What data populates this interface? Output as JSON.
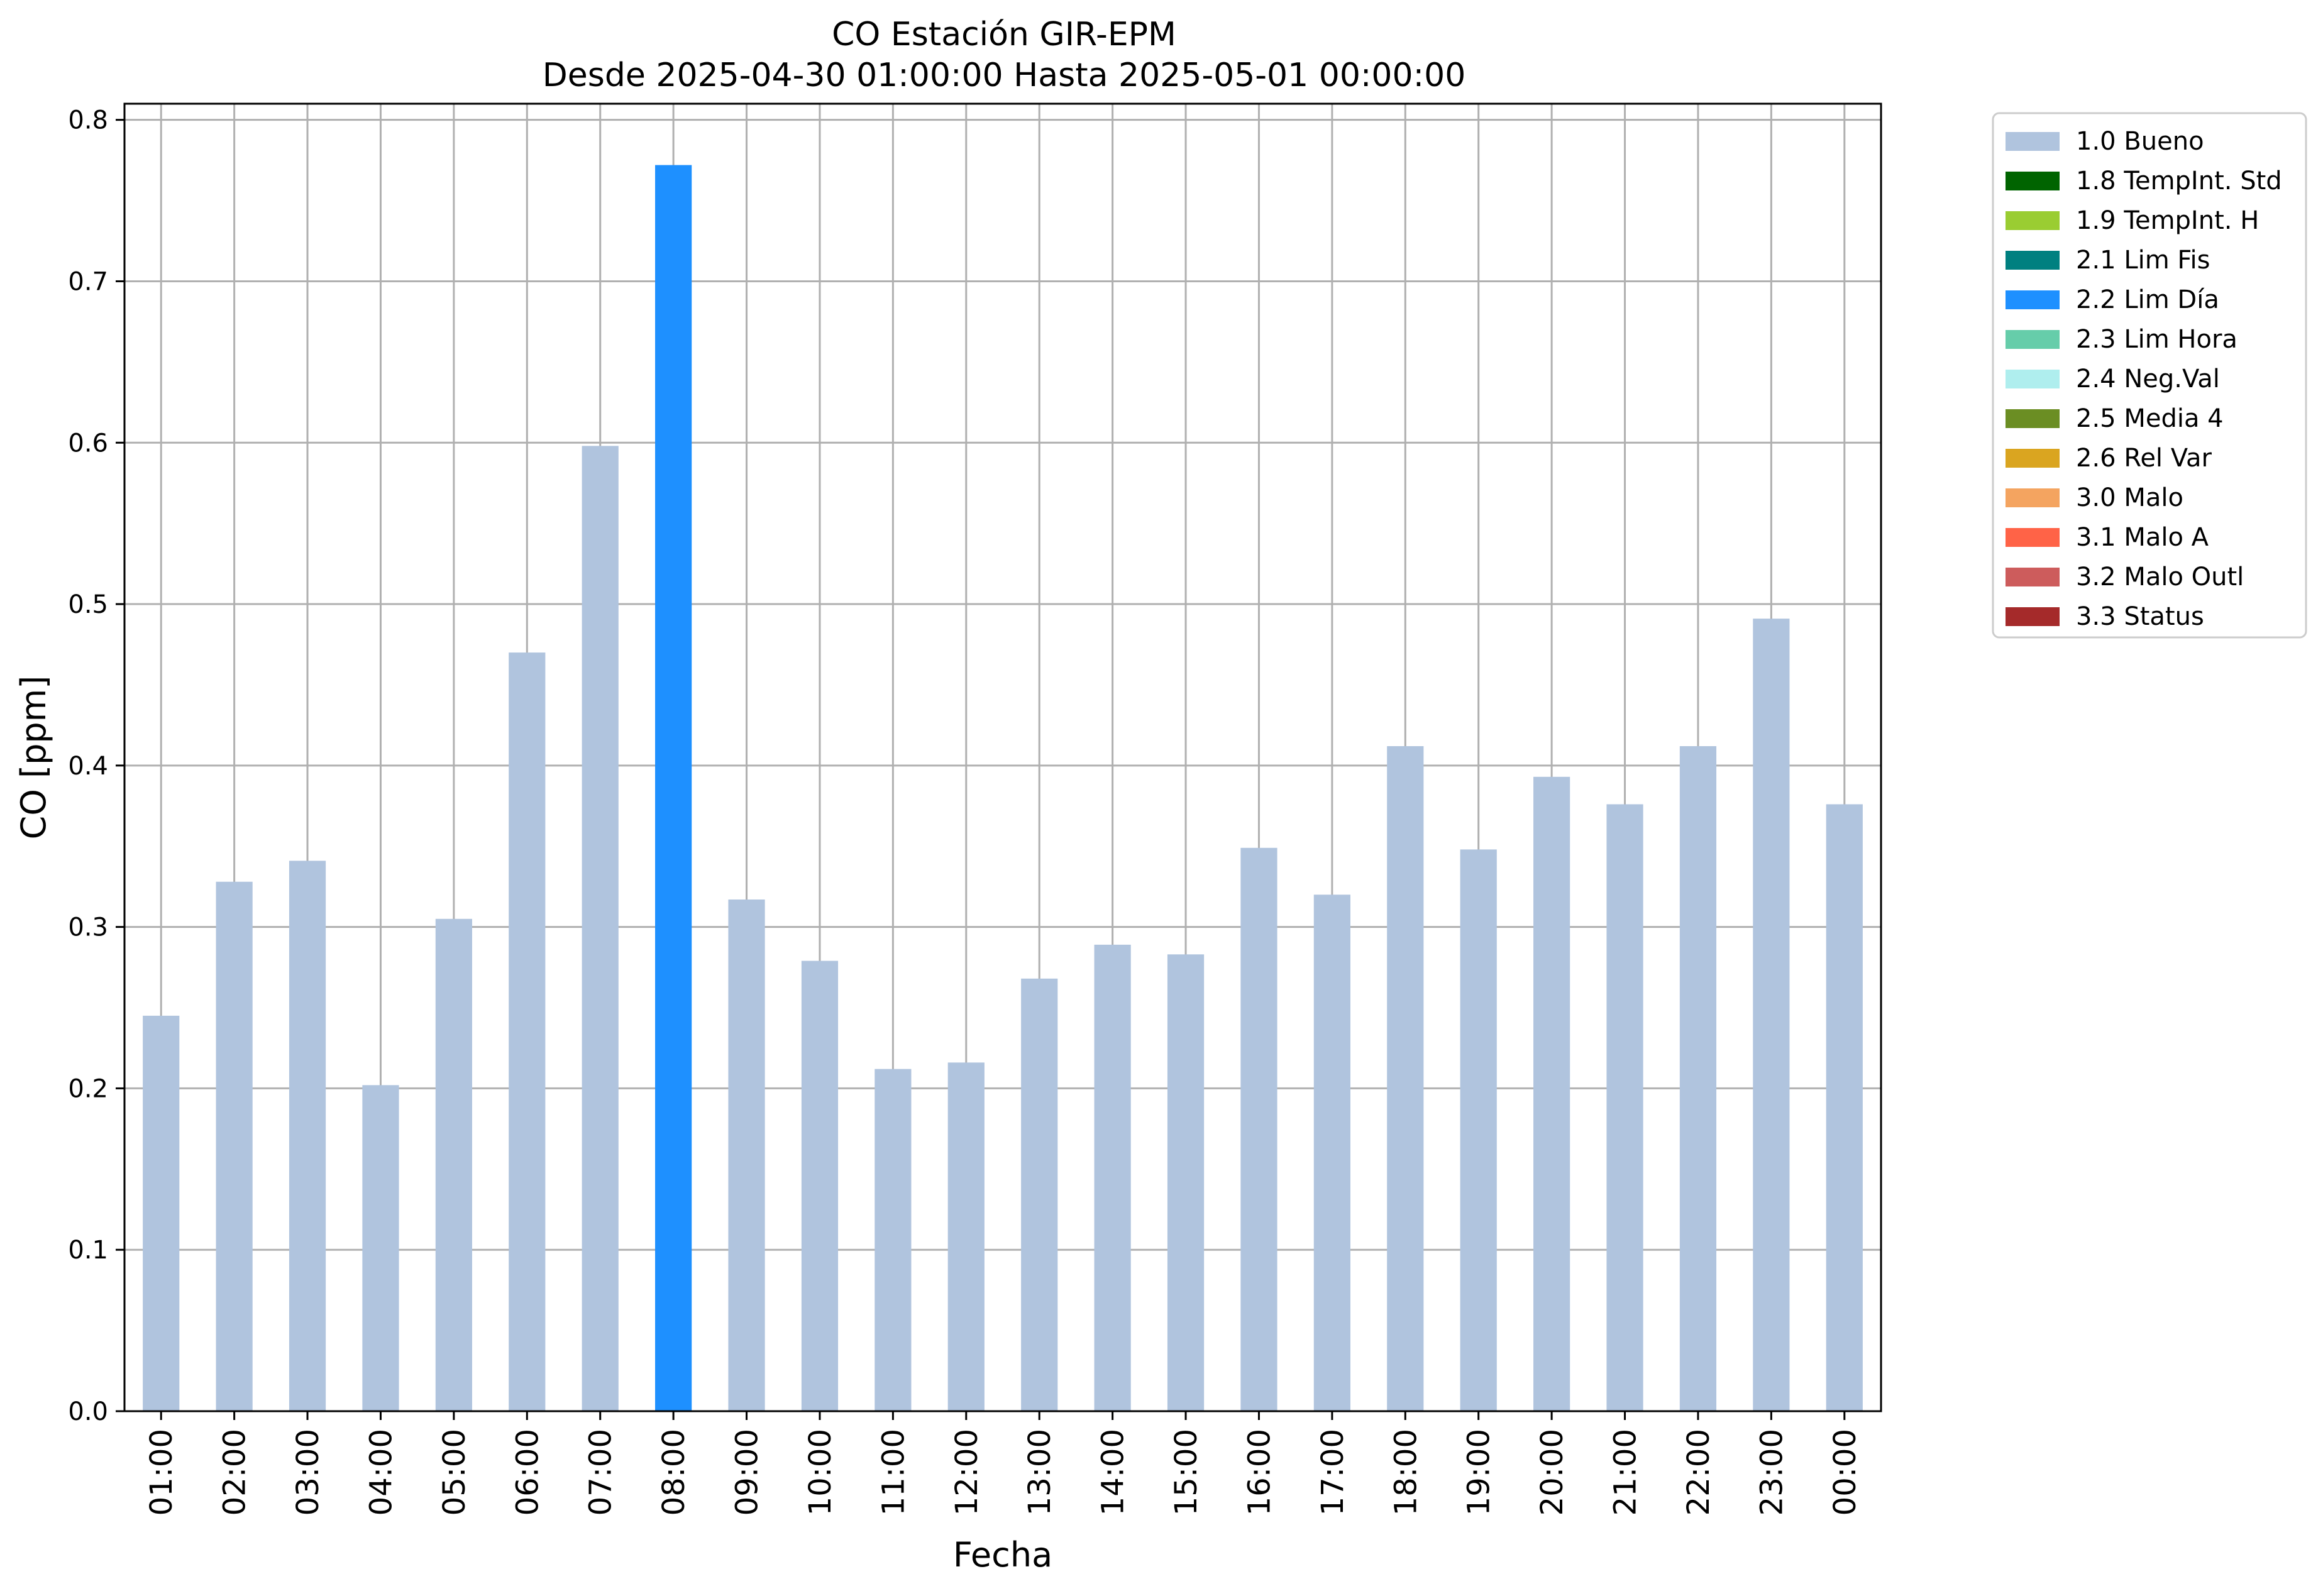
{
  "chart_data": {
    "type": "bar",
    "title": "CO Estación GIR-EPM",
    "subtitle": "Desde 2025-04-30 01:00:00 Hasta 2025-05-01 00:00:00",
    "xlabel": "Fecha",
    "ylabel": "CO [ppm]",
    "ylim": [
      0,
      0.81
    ],
    "yticks": [
      "0.0",
      "0.1",
      "0.2",
      "0.3",
      "0.4",
      "0.5",
      "0.6",
      "0.7",
      "0.8"
    ],
    "grid": true,
    "legend_position": "outside-top-right",
    "categories": [
      "01:00",
      "02:00",
      "03:00",
      "04:00",
      "05:00",
      "06:00",
      "07:00",
      "08:00",
      "09:00",
      "10:00",
      "11:00",
      "12:00",
      "13:00",
      "14:00",
      "15:00",
      "16:00",
      "17:00",
      "18:00",
      "19:00",
      "20:00",
      "21:00",
      "22:00",
      "23:00",
      "00:00"
    ],
    "values": [
      0.245,
      0.328,
      0.341,
      0.202,
      0.305,
      0.47,
      0.598,
      0.772,
      0.317,
      0.279,
      0.212,
      0.216,
      0.268,
      0.289,
      0.283,
      0.349,
      0.32,
      0.412,
      0.348,
      0.393,
      0.376,
      0.412,
      0.491,
      0.376
    ],
    "flags": [
      "1.0 Bueno",
      "1.0 Bueno",
      "1.0 Bueno",
      "1.0 Bueno",
      "1.0 Bueno",
      "1.0 Bueno",
      "1.0 Bueno",
      "2.2 Lim Día",
      "1.0 Bueno",
      "1.0 Bueno",
      "1.0 Bueno",
      "1.0 Bueno",
      "1.0 Bueno",
      "1.0 Bueno",
      "1.0 Bueno",
      "1.0 Bueno",
      "1.0 Bueno",
      "1.0 Bueno",
      "1.0 Bueno",
      "1.0 Bueno",
      "1.0 Bueno",
      "1.0 Bueno",
      "1.0 Bueno",
      "1.0 Bueno"
    ],
    "legend": [
      {
        "label": "1.0 Bueno",
        "color": "#b0c4de"
      },
      {
        "label": "1.8 TempInt. Std",
        "color": "#006400"
      },
      {
        "label": "1.9 TempInt. H",
        "color": "#9acd32"
      },
      {
        "label": "2.1 Lim Fis",
        "color": "#008080"
      },
      {
        "label": "2.2 Lim Día",
        "color": "#1e90ff"
      },
      {
        "label": "2.3 Lim Hora",
        "color": "#66cdaa"
      },
      {
        "label": "2.4 Neg.Val",
        "color": "#afeeee"
      },
      {
        "label": "2.5 Media 4",
        "color": "#6b8e23"
      },
      {
        "label": "2.6 Rel Var",
        "color": "#daa520"
      },
      {
        "label": "3.0 Malo",
        "color": "#f4a460"
      },
      {
        "label": "3.1 Malo A",
        "color": "#ff6347"
      },
      {
        "label": "3.2 Malo Outl",
        "color": "#cd5c5c"
      },
      {
        "label": "3.3 Status",
        "color": "#a52a2a"
      }
    ]
  }
}
